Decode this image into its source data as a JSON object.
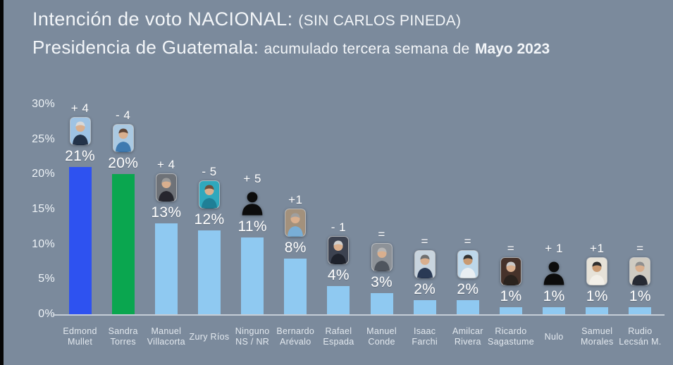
{
  "colors": {
    "background": "#7b8a9c",
    "edge_strip": "#060606",
    "title_text": "#f3f6f9",
    "axis_text": "#edf2f6",
    "axis_line": "#c9d1d9",
    "bar_default": "#8fc9f1",
    "bar_leader_blue": "#2e52f0",
    "bar_second_green": "#0aa64f",
    "silhouette": "#0c0c0c"
  },
  "header": {
    "title_main": "Intención de voto NACIONAL:",
    "title_paren": "(SIN CARLOS PINEDA)",
    "subtitle_main": "Presidencia de Guatemala:",
    "subtitle_detail": "acumulado tercera semana de",
    "subtitle_period": "Mayo 2023"
  },
  "chart_data": {
    "type": "bar",
    "title": "Intención de voto NACIONAL: (SIN CARLOS PINEDA)",
    "subtitle": "Presidencia de Guatemala: acumulado tercera semana de Mayo 2023",
    "xlabel": "",
    "ylabel": "",
    "ylim": [
      0,
      30
    ],
    "grid": false,
    "legend": false,
    "yticks": [
      "30%",
      "25%",
      "20%",
      "15%",
      "10%",
      "5%",
      "0%"
    ],
    "categories": [
      "Edmond Mullet",
      "Sandra Torres",
      "Manuel Villacorta",
      "Zury Ríos",
      "Ninguno NS / NR",
      "Bernardo Arévalo",
      "Rafael Espada",
      "Manuel Conde",
      "Isaac Farchi",
      "Amilcar Rivera",
      "Ricardo Sagastume",
      "Nulo",
      "Samuel Morales",
      "Rudio Lecsán M."
    ],
    "values": [
      21,
      20,
      13,
      12,
      11,
      8,
      4,
      3,
      2,
      2,
      1,
      1,
      1,
      1
    ],
    "value_labels": [
      "21%",
      "20%",
      "13%",
      "12%",
      "11%",
      "8%",
      "4%",
      "3%",
      "2%",
      "2%",
      "1%",
      "1%",
      "1%",
      "1%"
    ],
    "changes": [
      "+ 4",
      "- 4",
      "+ 4",
      "- 5",
      "+ 5",
      "+1",
      "- 1",
      "=",
      "=",
      "=",
      "=",
      "+ 1",
      "+1",
      "="
    ],
    "candidates": [
      {
        "name": "Edmond Mullet",
        "lines": [
          "Edmond",
          "Mullet"
        ],
        "value": 21,
        "value_label": "21%",
        "change": "+ 4",
        "bar_color": "#2e52f0",
        "avatar": {
          "type": "photo",
          "bg": "#9ec3e4",
          "suit": "#233349",
          "hair": "#d8d8d8",
          "skin": "#d9af8e"
        }
      },
      {
        "name": "Sandra Torres",
        "lines": [
          "Sandra",
          "Torres"
        ],
        "value": 20,
        "value_label": "20%",
        "change": "- 4",
        "bar_color": "#0aa64f",
        "avatar": {
          "type": "photo",
          "bg": "#aac9e2",
          "suit": "#3f7ab0",
          "hair": "#5d4436",
          "skin": "#d9af8e"
        }
      },
      {
        "name": "Manuel Villacorta",
        "lines": [
          "Manuel",
          "Villacorta"
        ],
        "value": 13,
        "value_label": "13%",
        "change": "+ 4",
        "bar_color": "#8fc9f1",
        "avatar": {
          "type": "photo",
          "bg": "#6e7278",
          "suit": "#26262e",
          "hair": "#9a9a9a",
          "skin": "#d9af8e"
        }
      },
      {
        "name": "Zury Ríos",
        "lines": [
          "Zury Ríos"
        ],
        "value": 12,
        "value_label": "12%",
        "change": "- 5",
        "bar_color": "#8fc9f1",
        "avatar": {
          "type": "photo",
          "bg": "#2fa8bd",
          "suit": "#1f7f96",
          "hair": "#6e4f3c",
          "skin": "#d9af8e"
        }
      },
      {
        "name": "Ninguno NS / NR",
        "lines": [
          "Ninguno",
          "NS / NR"
        ],
        "value": 11,
        "value_label": "11%",
        "change": "+ 5",
        "bar_color": "#8fc9f1",
        "avatar": {
          "type": "silhouette"
        }
      },
      {
        "name": "Bernardo Arévalo",
        "lines": [
          "Bernardo",
          "Arévalo"
        ],
        "value": 8,
        "value_label": "8%",
        "change": "+1",
        "bar_color": "#8fc9f1",
        "avatar": {
          "type": "photo",
          "bg": "#a3917c",
          "suit": "#79aed6",
          "hair": "#9f9f9f",
          "skin": "#d9af8e"
        }
      },
      {
        "name": "Rafael Espada",
        "lines": [
          "Rafael",
          "Espada"
        ],
        "value": 4,
        "value_label": "4%",
        "change": "- 1",
        "bar_color": "#8fc9f1",
        "avatar": {
          "type": "photo",
          "bg": "#3c4250",
          "suit": "#1e222c",
          "hair": "#cfcfcf",
          "skin": "#d9af8e"
        }
      },
      {
        "name": "Manuel Conde",
        "lines": [
          "Manuel",
          "Conde"
        ],
        "value": 3,
        "value_label": "3%",
        "change": "=",
        "bar_color": "#8fc9f1",
        "avatar": {
          "type": "photo",
          "bg": "#8d9298",
          "suit": "#4f555e",
          "hair": "#b5b5b5",
          "skin": "#d9af8e"
        }
      },
      {
        "name": "Isaac Farchi",
        "lines": [
          "Isaac",
          "Farchi"
        ],
        "value": 2,
        "value_label": "2%",
        "change": "=",
        "bar_color": "#8fc9f1",
        "avatar": {
          "type": "photo",
          "bg": "#c8d4de",
          "suit": "#2a3a55",
          "hair": "#6f6f6f",
          "skin": "#d9af8e"
        }
      },
      {
        "name": "Amilcar Rivera",
        "lines": [
          "Amilcar",
          "Rivera"
        ],
        "value": 2,
        "value_label": "2%",
        "change": "=",
        "bar_color": "#8fc9f1",
        "avatar": {
          "type": "photo",
          "bg": "#bdd7ea",
          "suit": "#e9eef2",
          "hair": "#333333",
          "skin": "#c99a72"
        }
      },
      {
        "name": "Ricardo Sagastume",
        "lines": [
          "Ricardo",
          "Sagastume"
        ],
        "value": 1,
        "value_label": "1%",
        "change": "=",
        "bar_color": "#8fc9f1",
        "avatar": {
          "type": "photo",
          "bg": "#46322a",
          "suit": "#2a231e",
          "hair": "#c9c9c9",
          "skin": "#d9af8e"
        }
      },
      {
        "name": "Nulo",
        "lines": [
          "Nulo"
        ],
        "value": 1,
        "value_label": "1%",
        "change": "+ 1",
        "bar_color": "#8fc9f1",
        "avatar": {
          "type": "silhouette"
        }
      },
      {
        "name": "Samuel Morales",
        "lines": [
          "Samuel",
          "Morales"
        ],
        "value": 1,
        "value_label": "1%",
        "change": "+1",
        "bar_color": "#8fc9f1",
        "avatar": {
          "type": "photo",
          "bg": "#e6e2d8",
          "suit": "#f2efe8",
          "hair": "#2e2e2e",
          "skin": "#c99a72"
        }
      },
      {
        "name": "Rudio Lecsán M.",
        "lines": [
          "Rudio",
          "Lecsán M."
        ],
        "value": 1,
        "value_label": "1%",
        "change": "=",
        "bar_color": "#8fc9f1",
        "avatar": {
          "type": "photo",
          "bg": "#cfcbc2",
          "suit": "#262a33",
          "hair": "#8e8e8e",
          "skin": "#d9af8e"
        }
      }
    ]
  }
}
